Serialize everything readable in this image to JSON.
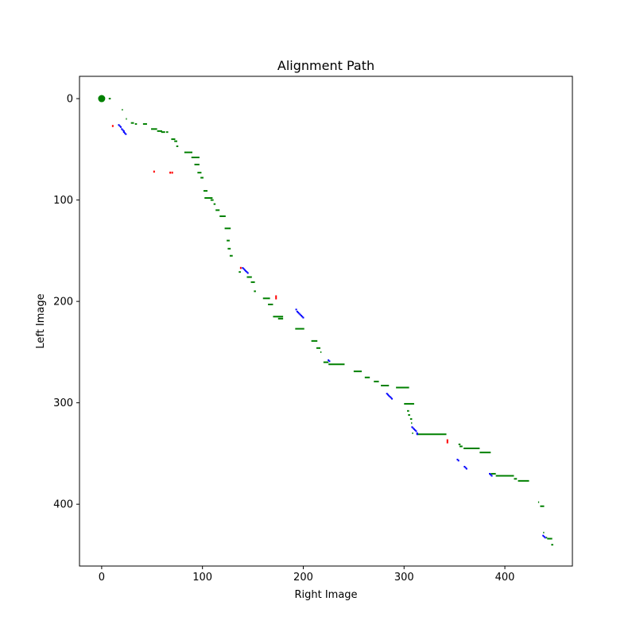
{
  "chart_data": {
    "type": "scatter",
    "title": "Alignment Path",
    "xlabel": "Right Image",
    "ylabel": "Left Image",
    "xlim": [
      -22,
      467
    ],
    "ylim": [
      461,
      -22
    ],
    "y_inverted": true,
    "grid": false,
    "x_ticks": [
      0,
      100,
      200,
      300,
      400
    ],
    "y_ticks": [
      0,
      100,
      200,
      300,
      400
    ],
    "start_marker": {
      "x": 0,
      "y": 0,
      "color": "#008000"
    },
    "colors": {
      "horizontal": "#008000",
      "vertical": "#ff0000",
      "diagonal": "#0000ff"
    },
    "series": [
      {
        "color": "#008000",
        "segments": [
          [
            0,
            7,
            9
          ],
          [
            11,
            20,
            21
          ],
          [
            20,
            24,
            25
          ],
          [
            24,
            29,
            32
          ],
          [
            25,
            33,
            35
          ],
          [
            25,
            41,
            45
          ],
          [
            30,
            49,
            55
          ],
          [
            32,
            55,
            60
          ],
          [
            33,
            59,
            63
          ],
          [
            33,
            64,
            66
          ],
          [
            40,
            69,
            73
          ],
          [
            42,
            72,
            75
          ],
          [
            47,
            74,
            76
          ],
          [
            53,
            82,
            90
          ],
          [
            58,
            89,
            97
          ],
          [
            65,
            92,
            97
          ],
          [
            73,
            95,
            99
          ],
          [
            78,
            98,
            101
          ],
          [
            91,
            101,
            105
          ],
          [
            98,
            102,
            110
          ],
          [
            100,
            108,
            111
          ],
          [
            104,
            111,
            113
          ],
          [
            110,
            113,
            117
          ],
          [
            116,
            117,
            123
          ],
          [
            128,
            122,
            128
          ],
          [
            140,
            124,
            127
          ],
          [
            148,
            125,
            128
          ],
          [
            155,
            127,
            130
          ],
          [
            171,
            136,
            138
          ],
          [
            176,
            144,
            149
          ],
          [
            181,
            148,
            152
          ],
          [
            190,
            151,
            153
          ],
          [
            197,
            160,
            167
          ],
          [
            203,
            165,
            170
          ],
          [
            215,
            170,
            180
          ],
          [
            217,
            175,
            180
          ],
          [
            227,
            192,
            201
          ],
          [
            239,
            208,
            214
          ],
          [
            246,
            213,
            217
          ],
          [
            250,
            217,
            218
          ],
          [
            260,
            220,
            225
          ],
          [
            262,
            225,
            241
          ],
          [
            269,
            250,
            258
          ],
          [
            275,
            261,
            266
          ],
          [
            279,
            270,
            275
          ],
          [
            283,
            277,
            285
          ],
          [
            285,
            292,
            305
          ],
          [
            301,
            300,
            310
          ],
          [
            308,
            303,
            305
          ],
          [
            312,
            304,
            306
          ],
          [
            316,
            306,
            308
          ],
          [
            320,
            307,
            308
          ],
          [
            330,
            308,
            309
          ],
          [
            331,
            313,
            342
          ],
          [
            341,
            354,
            356
          ],
          [
            343,
            355,
            358
          ],
          [
            345,
            359,
            375
          ],
          [
            349,
            375,
            386
          ],
          [
            370,
            386,
            391
          ],
          [
            372,
            391,
            409
          ],
          [
            375,
            409,
            412
          ],
          [
            377,
            413,
            424
          ],
          [
            398,
            433,
            434
          ],
          [
            402,
            435,
            439
          ],
          [
            428,
            438,
            439
          ],
          [
            433,
            441,
            442
          ],
          [
            434,
            442,
            447
          ],
          [
            440,
            446,
            448
          ]
        ]
      },
      {
        "color": "#ff0000",
        "segments": [
          [
            11,
            26,
            28
          ],
          [
            52,
            71,
            73
          ],
          [
            68,
            72,
            74
          ],
          [
            70,
            72,
            74
          ],
          [
            138,
            166,
            168
          ],
          [
            173,
            194,
            198
          ],
          [
            343,
            336,
            340
          ]
        ]
      },
      {
        "color": "#0000ff",
        "points": [
          [
            17,
            26
          ],
          [
            18,
            27
          ],
          [
            19,
            28
          ],
          [
            20,
            30
          ],
          [
            21,
            31
          ],
          [
            22,
            32
          ],
          [
            22,
            33
          ],
          [
            23,
            34
          ],
          [
            24,
            35
          ],
          [
            140,
            167
          ],
          [
            141,
            168
          ],
          [
            142,
            169
          ],
          [
            143,
            170
          ],
          [
            144,
            171
          ],
          [
            145,
            172
          ],
          [
            193,
            208
          ],
          [
            194,
            210
          ],
          [
            195,
            211
          ],
          [
            196,
            212
          ],
          [
            197,
            213
          ],
          [
            198,
            214
          ],
          [
            199,
            215
          ],
          [
            200,
            216
          ],
          [
            225,
            258
          ],
          [
            226,
            259
          ],
          [
            283,
            291
          ],
          [
            284,
            292
          ],
          [
            285,
            293
          ],
          [
            286,
            294
          ],
          [
            287,
            295
          ],
          [
            288,
            296
          ],
          [
            308,
            324
          ],
          [
            309,
            325
          ],
          [
            310,
            326
          ],
          [
            311,
            327
          ],
          [
            312,
            328
          ],
          [
            313,
            330
          ],
          [
            313,
            331
          ],
          [
            353,
            356
          ],
          [
            354,
            357
          ],
          [
            360,
            363
          ],
          [
            361,
            364
          ],
          [
            362,
            365
          ],
          [
            385,
            370
          ],
          [
            386,
            371
          ],
          [
            387,
            372
          ],
          [
            438,
            431
          ],
          [
            439,
            432
          ],
          [
            440,
            433
          ]
        ]
      }
    ]
  }
}
